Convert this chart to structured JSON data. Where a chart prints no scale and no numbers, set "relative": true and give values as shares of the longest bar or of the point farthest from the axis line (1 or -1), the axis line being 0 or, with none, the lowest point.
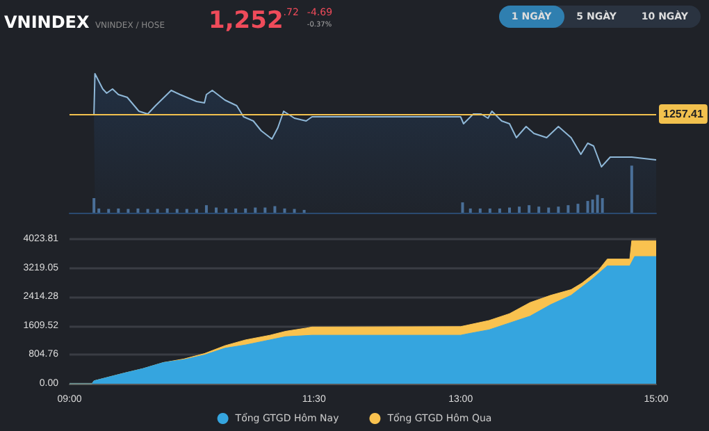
{
  "chart_data": [
    {
      "type": "area",
      "title": "VNINDEX",
      "subtitle": "VNINDEX / HOSE",
      "annotations": [
        "1,252.72",
        "-4.69",
        "-0.37%",
        "1 NGÀY",
        "5 NGÀY",
        "10 NGÀY",
        "1257.41"
      ],
      "relative": true,
      "series": [
        {
          "color": "#8fb8d8",
          "x": [
            9.25,
            9.26,
            9.34,
            9.38,
            9.44,
            9.5,
            9.59,
            9.71,
            9.8,
            9.88,
            10.04,
            10.13,
            10.3,
            10.38,
            10.4,
            10.46,
            10.59,
            10.71,
            10.78,
            10.88,
            10.96,
            11.07,
            11.13,
            11.19,
            11.3,
            11.42,
            11.48,
            13.0,
            13.03,
            13.13,
            13.21,
            13.28,
            13.32,
            13.42,
            13.5,
            13.57,
            13.67,
            13.75,
            13.88,
            14.0,
            14.13,
            14.23,
            14.3,
            14.36,
            14.44,
            14.53,
            14.75,
            15.0
          ],
          "values": [
            0.71,
            1,
            0.89,
            0.86,
            0.89,
            0.85,
            0.83,
            0.73,
            0.71,
            0.77,
            0.88,
            0.85,
            0.8,
            0.79,
            0.85,
            0.88,
            0.81,
            0.77,
            0.69,
            0.66,
            0.59,
            0.53,
            0.61,
            0.73,
            0.68,
            0.66,
            0.69,
            0.69,
            0.64,
            0.71,
            0.71,
            0.68,
            0.73,
            0.66,
            0.64,
            0.54,
            0.62,
            0.57,
            0.54,
            0.62,
            0.54,
            0.42,
            0.5,
            0.48,
            0.33,
            0.4,
            0.4,
            0.38
          ]
        },
        {
          "type": "bar",
          "axis": "y2",
          "color": "#4a6f98",
          "x": [
            9.25,
            9.3,
            9.4,
            9.5,
            9.6,
            9.7,
            9.8,
            9.9,
            10.0,
            10.1,
            10.2,
            10.3,
            10.4,
            10.5,
            10.6,
            10.7,
            10.8,
            10.9,
            11.0,
            11.1,
            11.2,
            11.3,
            11.4,
            13.02,
            13.1,
            13.2,
            13.3,
            13.4,
            13.5,
            13.6,
            13.7,
            13.8,
            13.9,
            14.0,
            14.1,
            14.2,
            14.3,
            14.35,
            14.4,
            14.45,
            14.75
          ],
          "values": [
            0.31,
            0.09,
            0.08,
            0.09,
            0.08,
            0.09,
            0.08,
            0.08,
            0.09,
            0.08,
            0.08,
            0.08,
            0.16,
            0.11,
            0.09,
            0.09,
            0.09,
            0.11,
            0.11,
            0.14,
            0.09,
            0.08,
            0.06,
            0.22,
            0.09,
            0.09,
            0.09,
            0.09,
            0.11,
            0.13,
            0.16,
            0.13,
            0.11,
            0.13,
            0.16,
            0.19,
            0.25,
            0.28,
            0.38,
            0.31,
            1
          ]
        }
      ],
      "xlim": [
        9,
        15
      ],
      "grid": false,
      "legend": false,
      "marker": "none",
      "ref_lines": [
        {
          "axis": "y",
          "value": 0.71,
          "color": "#f2c14e"
        }
      ]
    },
    {
      "type": "area",
      "stacked": false,
      "series": [
        {
          "name": "Tổng GTGD Hôm Qua",
          "color": "#f9c24f",
          "x": [
            9.0,
            9.23,
            9.25,
            9.55,
            9.75,
            9.96,
            10.17,
            10.38,
            10.59,
            10.8,
            11.05,
            11.21,
            11.42,
            11.48,
            13.0,
            13.29,
            13.5,
            13.71,
            13.92,
            14.13,
            14.24,
            14.41,
            14.5,
            14.73,
            14.75,
            15.0
          ],
          "values": [
            0,
            0,
            80,
            290,
            420,
            590,
            690,
            840,
            1060,
            1220,
            1350,
            1460,
            1550,
            1580,
            1590,
            1760,
            1950,
            2260,
            2460,
            2620,
            2800,
            3160,
            3470,
            3470,
            3980,
            3980
          ]
        },
        {
          "name": "Tổng GTGD Hôm Nay",
          "color": "#35a5df",
          "x": [
            9.0,
            9.23,
            9.25,
            9.55,
            9.75,
            9.96,
            10.17,
            10.38,
            10.59,
            10.8,
            11.05,
            11.21,
            11.48,
            13.0,
            13.09,
            13.29,
            13.5,
            13.71,
            13.92,
            14.13,
            14.34,
            14.5,
            14.73,
            14.78,
            15.0
          ],
          "values": [
            0,
            0,
            80,
            290,
            420,
            590,
            670,
            800,
            990,
            1080,
            1220,
            1310,
            1350,
            1350,
            1400,
            1500,
            1690,
            1880,
            2200,
            2460,
            2900,
            3280,
            3280,
            3540,
            3540
          ]
        }
      ],
      "xlim": [
        9,
        15
      ],
      "xticks": [
        {
          "value": 9,
          "label": "09:00"
        },
        {
          "value": 11.5,
          "label": "11:30"
        },
        {
          "value": 13,
          "label": "13:00"
        },
        {
          "value": 15,
          "label": "15:00"
        }
      ],
      "ylim": [
        0,
        4023.81
      ],
      "yticks": [
        {
          "value": 0,
          "label": "0.00"
        },
        804.76,
        1609.52,
        2414.28,
        3219.05,
        4023.81
      ],
      "grid": "y",
      "legend": "bottom",
      "marker": "none"
    }
  ]
}
